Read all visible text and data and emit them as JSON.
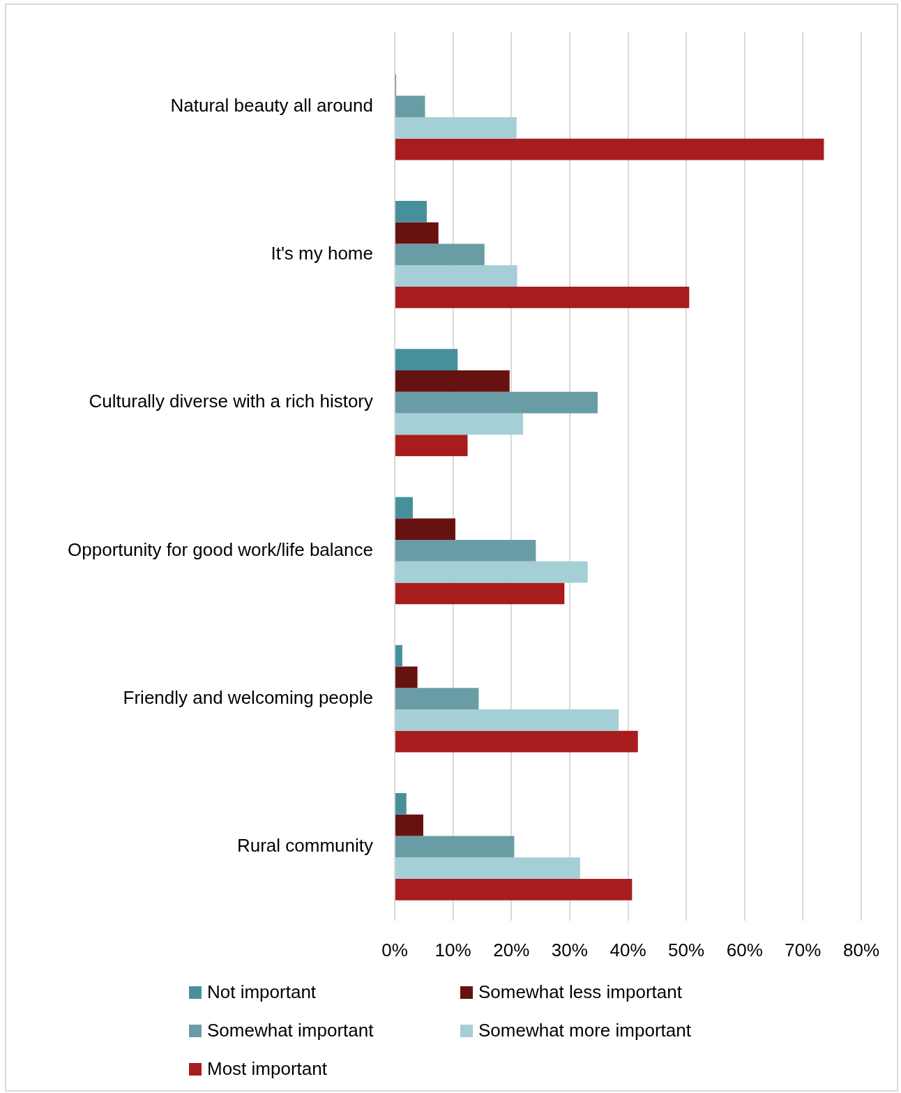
{
  "chart_data": {
    "type": "bar",
    "orientation": "horizontal",
    "categories": [
      "Natural beauty all around",
      "It's my home",
      "Culturally diverse with a rich history",
      "Opportunity for good work/life balance",
      "Friendly and welcoming people",
      "Rural community"
    ],
    "series": [
      {
        "name": "Not important",
        "color": "#46909c",
        "values": [
          0,
          5.5,
          10.8,
          3.1,
          1.3,
          2.0
        ]
      },
      {
        "name": "Somewhat less important",
        "color": "#661211",
        "values": [
          0.2,
          7.5,
          19.7,
          10.4,
          3.9,
          4.9
        ]
      },
      {
        "name": "Somewhat important",
        "color": "#6a9ca6",
        "values": [
          5.2,
          15.4,
          34.8,
          24.2,
          14.4,
          20.5
        ]
      },
      {
        "name": "Somewhat more important",
        "color": "#a5cfd7",
        "values": [
          20.9,
          21.0,
          22.0,
          33.1,
          38.4,
          31.8
        ]
      },
      {
        "name": "Most important",
        "color": "#a71d1e",
        "values": [
          73.6,
          50.5,
          12.5,
          29.1,
          41.7,
          40.7
        ]
      }
    ],
    "xlim": [
      0,
      80
    ],
    "xticks": [
      {
        "value": 0,
        "label": "0%"
      },
      {
        "value": 10,
        "label": "10%"
      },
      {
        "value": 20,
        "label": "20%"
      },
      {
        "value": 30,
        "label": "30%"
      },
      {
        "value": 40,
        "label": "40%"
      },
      {
        "value": 50,
        "label": "50%"
      },
      {
        "value": 60,
        "label": "60%"
      },
      {
        "value": 70,
        "label": "70%"
      },
      {
        "value": 80,
        "label": "80%"
      }
    ],
    "grid": "x",
    "legend": "bottom"
  }
}
